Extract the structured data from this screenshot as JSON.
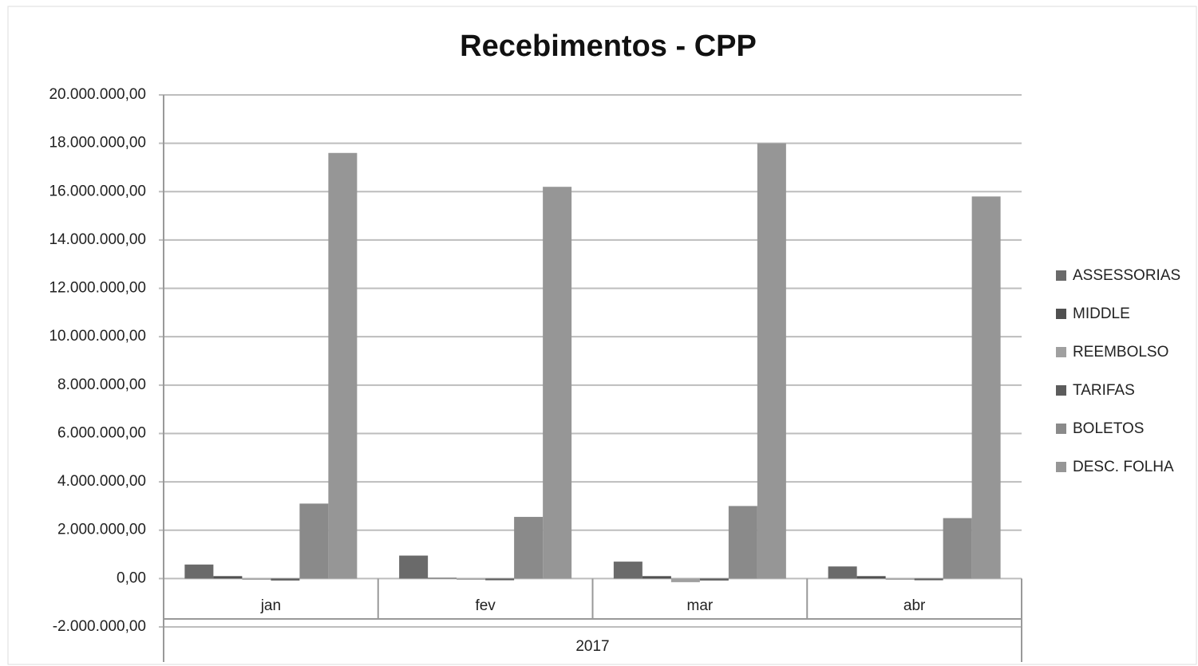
{
  "chart_data": {
    "type": "bar",
    "title": "Recebimentos - CPP",
    "categories": [
      "jan",
      "fev",
      "mar",
      "abr"
    ],
    "group_label": "2017",
    "series": [
      {
        "name": "ASSESSORIAS",
        "color": "#6a6a6a",
        "values": [
          580000,
          950000,
          700000,
          500000
        ]
      },
      {
        "name": "MIDDLE",
        "color": "#505050",
        "values": [
          100000,
          30000,
          100000,
          100000
        ]
      },
      {
        "name": "REEMBOLSO",
        "color": "#a0a0a0",
        "values": [
          -50000,
          -50000,
          -150000,
          -50000
        ]
      },
      {
        "name": "TARIFAS",
        "color": "#5c5c5c",
        "values": [
          -80000,
          -70000,
          -80000,
          -70000
        ]
      },
      {
        "name": "BOLETOS",
        "color": "#8a8a8a",
        "values": [
          3100000,
          2550000,
          3000000,
          2500000
        ]
      },
      {
        "name": "DESC. FOLHA",
        "color": "#969696",
        "values": [
          17600000,
          16200000,
          18000000,
          15800000
        ]
      }
    ],
    "ylim": [
      -2000000,
      20000000
    ],
    "yticks": [
      {
        "value": -2000000,
        "label": "-2.000.000,00"
      },
      {
        "value": 0,
        "label": "0,00"
      },
      {
        "value": 2000000,
        "label": "2.000.000,00"
      },
      {
        "value": 4000000,
        "label": "4.000.000,00"
      },
      {
        "value": 6000000,
        "label": "6.000.000,00"
      },
      {
        "value": 8000000,
        "label": "8.000.000,00"
      },
      {
        "value": 10000000,
        "label": "10.000.000,00"
      },
      {
        "value": 12000000,
        "label": "12.000.000,00"
      },
      {
        "value": 14000000,
        "label": "14.000.000,00"
      },
      {
        "value": 16000000,
        "label": "16.000.000,00"
      },
      {
        "value": 18000000,
        "label": "18.000.000,00"
      },
      {
        "value": 20000000,
        "label": "20.000.000,00"
      }
    ],
    "grid": true,
    "legend": "right"
  }
}
